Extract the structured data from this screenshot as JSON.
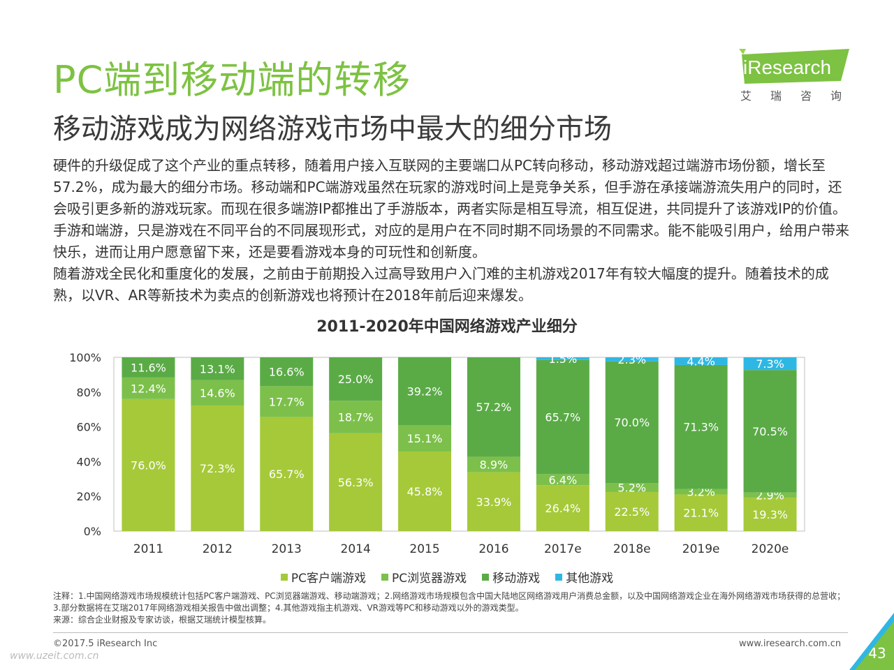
{
  "header": {
    "title": "PC端到移动端的转移",
    "subtitle": "移动游戏成为网络游戏市场中最大的细分市场"
  },
  "logo": {
    "brand": "iResearch",
    "brand_cn": "艾瑞咨询",
    "color": "#7dc242"
  },
  "body": {
    "paragraph1": "硬件的升级促成了这个产业的重点转移，随着用户接入互联网的主要端口从PC转向移动，移动游戏超过端游市场份额，增长至57.2%，成为最大的细分市场。移动端和PC端游戏虽然在玩家的游戏时间上是竞争关系，但手游在承接端游流失用户的同时，还会吸引更多新的游戏玩家。而现在很多端游IP都推出了手游版本，两者实际是相互导流，相互促进，共同提升了该游戏IP的价值。手游和端游，只是游戏在不同平台的不同展现形式，对应的是用户在不同时期不同场景的不同需求。能不能吸引用户，给用户带来快乐，进而让用户愿意留下来，还是要看游戏本身的可玩性和创新度。",
    "paragraph2": "随着游戏全民化和重度化的发展，之前由于前期投入过高导致用户入门难的主机游戏2017年有较大幅度的提升。随着技术的成熟，以VR、AR等新技术为卖点的创新游戏也将预计在2018年前后迎来爆发。"
  },
  "chart_data": {
    "type": "bar",
    "stacked": true,
    "title": "2011-2020年中国网络游戏产业细分",
    "categories": [
      "2011",
      "2012",
      "2013",
      "2014",
      "2015",
      "2016",
      "2017e",
      "2018e",
      "2019e",
      "2020e"
    ],
    "series": [
      {
        "name": "PC客户端游戏",
        "color": "#a6c93a",
        "values": [
          76.0,
          72.3,
          65.7,
          56.3,
          45.8,
          33.9,
          26.4,
          22.5,
          21.1,
          19.3
        ],
        "labels": [
          "76.0%",
          "72.3%",
          "65.7%",
          "56.3%",
          "45.8%",
          "33.9%",
          "26.4%",
          "22.5%",
          "21.1%",
          "19.3%"
        ]
      },
      {
        "name": "PC浏览器游戏",
        "color": "#7cc04b",
        "values": [
          12.4,
          14.6,
          17.7,
          18.7,
          15.1,
          8.9,
          6.4,
          5.2,
          3.2,
          2.9
        ],
        "labels": [
          "12.4%",
          "14.6%",
          "17.7%",
          "18.7%",
          "15.1%",
          "8.9%",
          "6.4%",
          "5.2%",
          "3.2%",
          "2.9%"
        ]
      },
      {
        "name": "移动游戏",
        "color": "#5aab46",
        "values": [
          11.6,
          13.1,
          16.6,
          25.0,
          39.2,
          57.2,
          65.7,
          70.0,
          71.3,
          70.5
        ],
        "labels": [
          "11.6%",
          "13.1%",
          "16.6%",
          "25.0%",
          "39.2%",
          "57.2%",
          "65.7%",
          "70.0%",
          "71.3%",
          "70.5%"
        ]
      },
      {
        "name": "其他游戏",
        "color": "#2fb7e3",
        "values": [
          0,
          0,
          0,
          0,
          0,
          0,
          1.5,
          2.3,
          4.4,
          7.3
        ],
        "labels": [
          "",
          "",
          "",
          "",
          "",
          "",
          "1.5%",
          "2.3%",
          "4.4%",
          "7.3%"
        ]
      }
    ],
    "yticks": [
      "0%",
      "20%",
      "40%",
      "60%",
      "80%",
      "100%"
    ],
    "ylim": [
      0,
      100
    ],
    "legend_position": "bottom",
    "grid": false
  },
  "notes": {
    "line1": "注释：1.中国网络游戏市场规模统计包括PC客户端游戏、PC浏览器端游戏、移动端游戏；2.网络游戏市场规模包含中国大陆地区网络游戏用户消费总金额，以及中国网络游戏企业在海外网络游戏市场获得的总营收；3.部分数据将在艾瑞2017年网络游戏相关报告中做出调整；4.其他游戏指主机游戏、VR游戏等PC和移动游戏以外的游戏类型。",
    "line2": "来源：综合企业财报及专家访谈，根据艾瑞统计模型核算。"
  },
  "footer": {
    "copyright": "©2017.5 iResearch Inc",
    "website": "www.iresearch.com.cn",
    "page": "43",
    "watermark": "www.uzeit.com.cn"
  }
}
